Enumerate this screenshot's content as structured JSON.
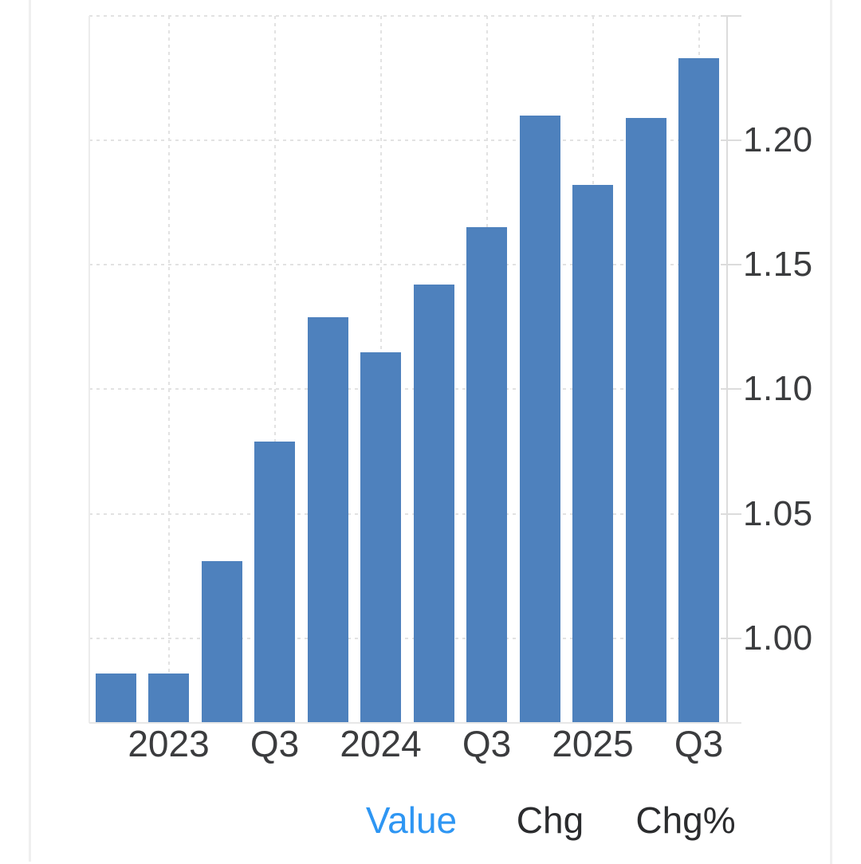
{
  "legend": {
    "tabs": [
      {
        "label": "Value",
        "active": true
      },
      {
        "label": "Chg",
        "active": false
      },
      {
        "label": "Chg%",
        "active": false
      }
    ]
  },
  "colors": {
    "bar": "#4E81BD",
    "active_tab": "#2E96F3",
    "tab_text": "#2B2C2E",
    "axis_text": "#3B3C3E",
    "gridline": "#E2E2E2",
    "axis_line": "#DCDCDC",
    "panel_divider": "#EFEFEF"
  },
  "chart_data": {
    "type": "bar",
    "title": "",
    "xlabel": "",
    "ylabel": "",
    "values": [
      0.986,
      0.986,
      1.031,
      1.079,
      1.129,
      1.115,
      1.142,
      1.165,
      1.21,
      1.182,
      1.209,
      1.233
    ],
    "x_tick_labels": [
      {
        "bar": 2,
        "label": "2023"
      },
      {
        "bar": 4,
        "label": "Q3"
      },
      {
        "bar": 6,
        "label": "2024"
      },
      {
        "bar": 8,
        "label": "Q3"
      },
      {
        "bar": 10,
        "label": "2025"
      },
      {
        "bar": 12,
        "label": "Q3"
      }
    ],
    "y_tick_labels": [
      {
        "value": 1.0,
        "label": "1.00"
      },
      {
        "value": 1.05,
        "label": "1.05"
      },
      {
        "value": 1.1,
        "label": "1.10"
      },
      {
        "value": 1.15,
        "label": "1.15"
      },
      {
        "value": 1.2,
        "label": "1.20"
      }
    ],
    "y_gridlines": [
      1.0,
      1.05,
      1.1,
      1.15,
      1.2,
      1.25
    ],
    "ylim": [
      0.966,
      1.25
    ],
    "grid": "dotted",
    "legend_position": "bottom",
    "bar_color": "#4E81BD"
  }
}
